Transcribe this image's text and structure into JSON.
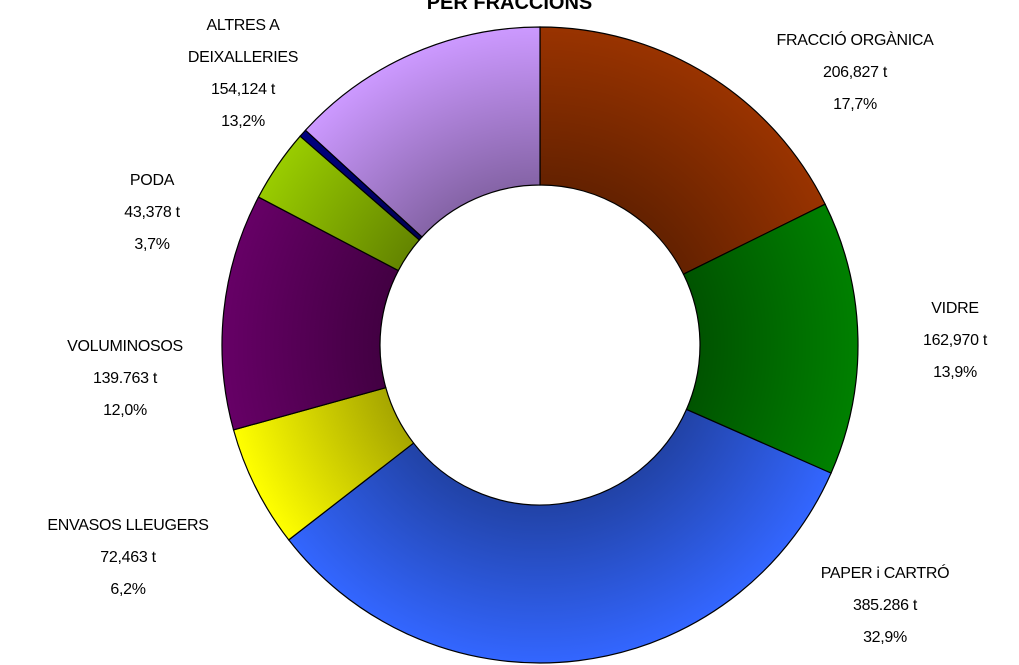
{
  "chart_data": {
    "type": "donut",
    "title": "PER FRACCIONS",
    "categories": [
      "FRACCIÓ ORGÀNICA",
      "VIDRE",
      "PAPER i CARTRÓ",
      "ENVASOS LLEUGERS",
      "VOLUMINOSOS",
      "PODA",
      null,
      "ALTRES A DEIXALLERIES"
    ],
    "values": [
      17.7,
      13.9,
      32.9,
      6.2,
      12.0,
      3.7,
      0.4,
      13.2
    ],
    "value_labels": [
      "17,7%",
      "13,9%",
      "32,9%",
      "6,2%",
      "12,0%",
      "3,7%",
      null,
      "13,2%"
    ],
    "amount_labels": [
      "206,827 t",
      "162,970 t",
      "385.286 t",
      "72,463 t",
      "139.763 t",
      "43,378 t",
      null,
      "154,124 t"
    ],
    "colors": [
      "#993300",
      "#008000",
      "#3366ff",
      "#ffff00",
      "#660066",
      "#99cc00",
      "#000080",
      "#cc99ff"
    ]
  }
}
